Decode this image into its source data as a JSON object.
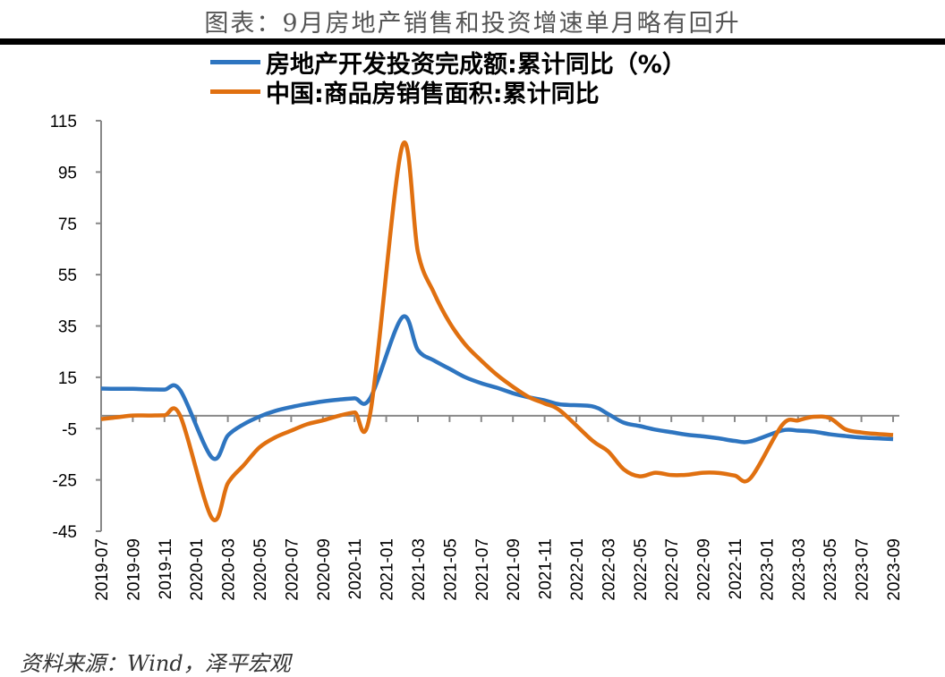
{
  "title": "图表：9月房地产销售和投资增速单月略有回升",
  "source": "资料来源：Wind，泽平宏观",
  "chart_data": {
    "type": "line",
    "title": "图表：9月房地产销售和投资增速单月略有回升",
    "xlabel": "",
    "ylabel": "",
    "ylim": [
      -45,
      115
    ],
    "yticks": [
      115,
      95,
      75,
      55,
      35,
      15,
      -5,
      -25,
      -45
    ],
    "xticks": [
      "2019-07",
      "2019-09",
      "2019-11",
      "2020-01",
      "2020-03",
      "2020-05",
      "2020-07",
      "2020-09",
      "2020-11",
      "2021-01",
      "2021-03",
      "2021-05",
      "2021-07",
      "2021-09",
      "2021-11",
      "2022-01",
      "2022-03",
      "2022-05",
      "2022-07",
      "2022-09",
      "2022-11",
      "2023-01",
      "2023-03",
      "2023-05",
      "2023-07",
      "2023-09"
    ],
    "grid": false,
    "legend": "top",
    "x": [
      "2019-07",
      "2019-08",
      "2019-09",
      "2019-10",
      "2019-11",
      "2019-12",
      "2020-02",
      "2020-03",
      "2020-04",
      "2020-05",
      "2020-06",
      "2020-07",
      "2020-08",
      "2020-09",
      "2020-10",
      "2020-11",
      "2020-12",
      "2021-02",
      "2021-03",
      "2021-04",
      "2021-05",
      "2021-06",
      "2021-07",
      "2021-08",
      "2021-09",
      "2021-10",
      "2021-11",
      "2021-12",
      "2022-02",
      "2022-03",
      "2022-04",
      "2022-05",
      "2022-06",
      "2022-07",
      "2022-08",
      "2022-09",
      "2022-10",
      "2022-11",
      "2022-12",
      "2023-02",
      "2023-03",
      "2023-04",
      "2023-05",
      "2023-06",
      "2023-07",
      "2023-08",
      "2023-09"
    ],
    "series": [
      {
        "name": "房地产开发投资完成额:累计同比（%）",
        "color": "#2e75c0",
        "values": [
          10.6,
          10.5,
          10.5,
          10.3,
          10.2,
          9.9,
          -16.3,
          -7.7,
          -3.3,
          -0.3,
          1.9,
          3.4,
          4.6,
          5.6,
          6.3,
          6.8,
          7.0,
          38.3,
          25.6,
          21.6,
          18.3,
          15.0,
          12.7,
          10.9,
          8.8,
          7.2,
          6.0,
          4.4,
          3.7,
          0.7,
          -2.7,
          -4.0,
          -5.4,
          -6.4,
          -7.4,
          -8.0,
          -8.8,
          -9.8,
          -10.0,
          -5.7,
          -5.8,
          -6.2,
          -7.2,
          -7.9,
          -8.5,
          -8.8,
          -9.1
        ]
      },
      {
        "name": "中国:商品房销售面积:累计同比",
        "color": "#e07010",
        "values": [
          -1.3,
          -0.6,
          0.1,
          0.1,
          0.2,
          -0.1,
          -39.9,
          -26.3,
          -19.3,
          -12.3,
          -8.4,
          -5.8,
          -3.3,
          -1.8,
          0.0,
          1.3,
          1.3,
          104.9,
          63.8,
          48.1,
          36.3,
          27.7,
          21.5,
          15.9,
          11.3,
          7.3,
          4.8,
          1.9,
          -9.6,
          -13.8,
          -20.9,
          -23.6,
          -22.2,
          -23.1,
          -23.0,
          -22.2,
          -22.3,
          -23.3,
          -24.3,
          -3.6,
          -1.8,
          -0.4,
          -0.9,
          -5.3,
          -6.5,
          -7.1,
          -7.5
        ]
      }
    ]
  }
}
